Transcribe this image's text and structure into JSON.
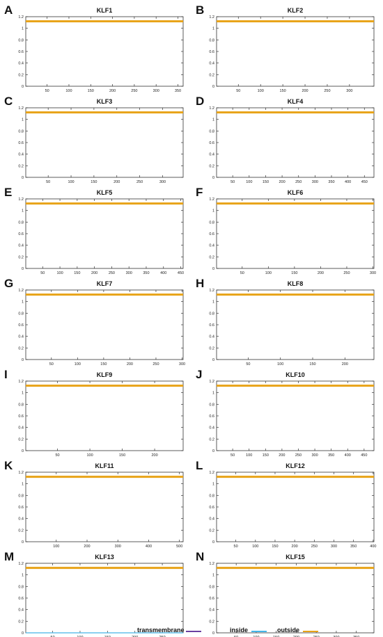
{
  "chart_data": [
    {
      "panel": "A",
      "title": "KLF1",
      "type": "line",
      "yticks": [
        0,
        0.2,
        0.4,
        0.6,
        0.8,
        1,
        1.2
      ],
      "ylim": [
        0,
        1.2
      ],
      "xticks": [
        50,
        100,
        150,
        200,
        250,
        300,
        350
      ],
      "xlim": [
        1,
        362
      ],
      "series": [
        {
          "name": "outside",
          "x": [
            1,
            362
          ],
          "y": [
            1.12,
            1.12
          ]
        }
      ]
    },
    {
      "panel": "B",
      "title": "KLF2",
      "type": "line",
      "yticks": [
        0,
        0.2,
        0.4,
        0.6,
        0.8,
        1,
        1.2
      ],
      "ylim": [
        0,
        1.2
      ],
      "xticks": [
        50,
        100,
        150,
        200,
        250,
        300
      ],
      "xlim": [
        1,
        355
      ],
      "series": [
        {
          "name": "outside",
          "x": [
            1,
            355
          ],
          "y": [
            1.12,
            1.12
          ]
        }
      ]
    },
    {
      "panel": "C",
      "title": "KLF3",
      "type": "line",
      "yticks": [
        0,
        0.2,
        0.4,
        0.6,
        0.8,
        1,
        1.2
      ],
      "ylim": [
        0,
        1.2
      ],
      "xticks": [
        50,
        100,
        150,
        200,
        250,
        300
      ],
      "xlim": [
        1,
        345
      ],
      "series": [
        {
          "name": "outside",
          "x": [
            1,
            345
          ],
          "y": [
            1.12,
            1.12
          ]
        }
      ]
    },
    {
      "panel": "D",
      "title": "KLF4",
      "type": "line",
      "yticks": [
        0,
        0.2,
        0.4,
        0.6,
        0.8,
        1,
        1.2
      ],
      "ylim": [
        0,
        1.2
      ],
      "xticks": [
        50,
        100,
        150,
        200,
        250,
        300,
        350,
        400,
        450
      ],
      "xlim": [
        1,
        479
      ],
      "series": [
        {
          "name": "outside",
          "x": [
            1,
            479
          ],
          "y": [
            1.12,
            1.12
          ]
        }
      ]
    },
    {
      "panel": "E",
      "title": "KLF5",
      "type": "line",
      "yticks": [
        0,
        0.2,
        0.4,
        0.6,
        0.8,
        1,
        1.2
      ],
      "ylim": [
        0,
        1.2
      ],
      "xticks": [
        50,
        100,
        150,
        200,
        250,
        300,
        350,
        400,
        450
      ],
      "xlim": [
        1,
        457
      ],
      "series": [
        {
          "name": "outside",
          "x": [
            1,
            457
          ],
          "y": [
            1.12,
            1.12
          ]
        }
      ]
    },
    {
      "panel": "F",
      "title": "KLF6",
      "type": "line",
      "yticks": [
        0,
        0.2,
        0.4,
        0.6,
        0.8,
        1,
        1.2
      ],
      "ylim": [
        0,
        1.2
      ],
      "xticks": [
        50,
        100,
        150,
        200,
        250,
        300
      ],
      "xlim": [
        1,
        302
      ],
      "series": [
        {
          "name": "outside",
          "x": [
            1,
            302
          ],
          "y": [
            1.12,
            1.12
          ]
        }
      ]
    },
    {
      "panel": "G",
      "title": "KLF7",
      "type": "line",
      "yticks": [
        0,
        0.2,
        0.4,
        0.6,
        0.8,
        1,
        1.2
      ],
      "ylim": [
        0,
        1.2
      ],
      "xticks": [
        50,
        100,
        150,
        200,
        250,
        300
      ],
      "xlim": [
        1,
        302
      ],
      "series": [
        {
          "name": "outside",
          "x": [
            1,
            302
          ],
          "y": [
            1.12,
            1.12
          ]
        }
      ]
    },
    {
      "panel": "H",
      "title": "KLF8",
      "type": "line",
      "yticks": [
        0,
        0.2,
        0.4,
        0.6,
        0.8,
        1,
        1.2
      ],
      "ylim": [
        0,
        1.2
      ],
      "xticks": [
        50,
        100,
        150,
        200
      ],
      "xlim": [
        1,
        245
      ],
      "series": [
        {
          "name": "outside",
          "x": [
            1,
            245
          ],
          "y": [
            1.12,
            1.12
          ]
        }
      ]
    },
    {
      "panel": "I",
      "title": "KLF9",
      "type": "line",
      "yticks": [
        0,
        0.2,
        0.4,
        0.6,
        0.8,
        1,
        1.2
      ],
      "ylim": [
        0,
        1.2
      ],
      "xticks": [
        50,
        100,
        150,
        200
      ],
      "xlim": [
        1,
        244
      ],
      "series": [
        {
          "name": "outside",
          "x": [
            1,
            244
          ],
          "y": [
            1.12,
            1.12
          ]
        }
      ]
    },
    {
      "panel": "J",
      "title": "KLF10",
      "type": "line",
      "yticks": [
        0,
        0.2,
        0.4,
        0.6,
        0.8,
        1,
        1.2
      ],
      "ylim": [
        0,
        1.2
      ],
      "xticks": [
        50,
        100,
        150,
        200,
        250,
        300,
        350,
        400,
        450
      ],
      "xlim": [
        1,
        480
      ],
      "series": [
        {
          "name": "outside",
          "x": [
            1,
            480
          ],
          "y": [
            1.12,
            1.12
          ]
        }
      ]
    },
    {
      "panel": "K",
      "title": "KLF11",
      "type": "line",
      "yticks": [
        0,
        0.2,
        0.4,
        0.6,
        0.8,
        1,
        1.2
      ],
      "ylim": [
        0,
        1.2
      ],
      "xticks": [
        100,
        200,
        300,
        400,
        500
      ],
      "xlim": [
        1,
        512
      ],
      "series": [
        {
          "name": "outside",
          "x": [
            1,
            512
          ],
          "y": [
            1.12,
            1.12
          ]
        }
      ]
    },
    {
      "panel": "L",
      "title": "KLF12",
      "type": "line",
      "yticks": [
        0,
        0.2,
        0.4,
        0.6,
        0.8,
        1,
        1.2
      ],
      "ylim": [
        0,
        1.2
      ],
      "xticks": [
        50,
        100,
        150,
        200,
        250,
        300,
        350,
        400
      ],
      "xlim": [
        1,
        402
      ],
      "series": [
        {
          "name": "outside",
          "x": [
            1,
            402
          ],
          "y": [
            1.12,
            1.12
          ]
        }
      ]
    },
    {
      "panel": "M",
      "title": "KLF13",
      "type": "line",
      "yticks": [
        0,
        0.2,
        0.4,
        0.6,
        0.8,
        1,
        1.2
      ],
      "ylim": [
        0,
        1.2
      ],
      "xticks": [
        50,
        100,
        150,
        200,
        250
      ],
      "xlim": [
        1,
        288
      ],
      "series": [
        {
          "name": "outside",
          "x": [
            1,
            288
          ],
          "y": [
            1.12,
            1.12
          ]
        },
        {
          "name": "inside",
          "x": [
            1,
            288
          ],
          "y": [
            0,
            0
          ]
        }
      ]
    },
    {
      "panel": "N",
      "title": "KLF15",
      "type": "line",
      "yticks": [
        0,
        0.2,
        0.4,
        0.6,
        0.8,
        1,
        1.2
      ],
      "ylim": [
        0,
        1.2
      ],
      "xticks": [
        50,
        100,
        150,
        200,
        250,
        300,
        350
      ],
      "xlim": [
        1,
        394
      ],
      "series": [
        {
          "name": "outside",
          "x": [
            1,
            394
          ],
          "y": [
            1.12,
            1.12
          ]
        }
      ]
    }
  ],
  "legend": [
    {
      "label": "transmembrane",
      "color": "#6a3fa0"
    },
    {
      "label": "inside",
      "color": "#43b5e8"
    },
    {
      "label": "outside",
      "color": "#e8a317"
    }
  ],
  "colors": {
    "outside": "#e8a317",
    "inside": "#43b5e8",
    "transmembrane": "#6a3fa0",
    "axis": "#333333"
  }
}
